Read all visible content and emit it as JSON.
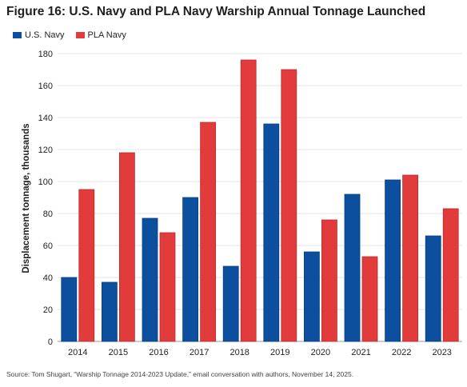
{
  "title": "Figure 16: U.S. Navy and PLA Navy Warship Annual Tonnage Launched",
  "source": "Source: Tom Shugart, “Warship Tonnage 2014-2023 Update,” email conversation with authors, November 14, 2025.",
  "chart_data": {
    "type": "bar",
    "title": "Figure 16: U.S. Navy and PLA Navy Warship Annual Tonnage Launched",
    "xlabel": "",
    "ylabel": "Displacement tonnage, thousands",
    "ylim": [
      0,
      180
    ],
    "yticks": [
      0,
      20,
      40,
      60,
      80,
      100,
      120,
      140,
      160,
      180
    ],
    "grid": true,
    "legend_position": "top-left",
    "categories": [
      "2014",
      "2015",
      "2016",
      "2017",
      "2018",
      "2019",
      "2020",
      "2021",
      "2022",
      "2023"
    ],
    "series": [
      {
        "name": "U.S. Navy",
        "color": "#0b4f9e",
        "values": [
          40,
          37,
          77,
          90,
          47,
          136,
          56,
          92,
          101,
          66
        ]
      },
      {
        "name": "PLA Navy",
        "color": "#e23b3b",
        "values": [
          95,
          118,
          68,
          137,
          176,
          170,
          76,
          53,
          104,
          83
        ]
      }
    ]
  }
}
